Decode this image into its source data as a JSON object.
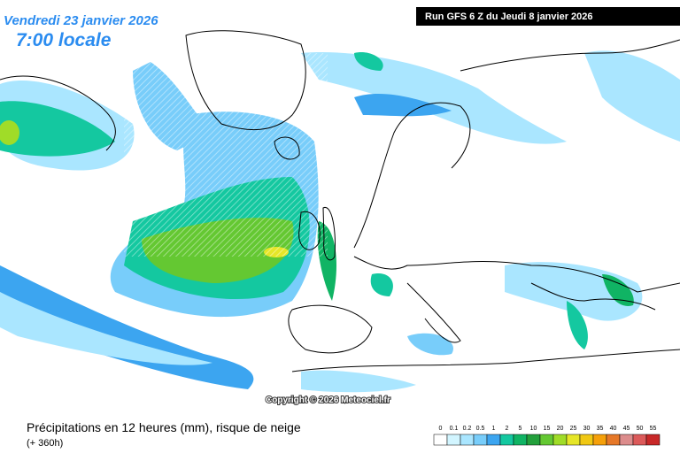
{
  "header": {
    "date": "Vendredi 23 janvier 2026",
    "time": "7:00 locale",
    "run": "Run GFS 6 Z du Jeudi 8 janvier 2026"
  },
  "copyright": "Copyright © 2026 Meteociel.fr",
  "footer": {
    "caption": "Précipitations en 12 heures (mm), risque de neige",
    "lead": "(+ 360h)"
  },
  "legend": [
    {
      "label": "0",
      "color": "#ffffff"
    },
    {
      "label": "0.1",
      "color": "#d2f5ff"
    },
    {
      "label": "0.2",
      "color": "#aae6ff"
    },
    {
      "label": "0.5",
      "color": "#78cdfa"
    },
    {
      "label": "1",
      "color": "#3ca5f0"
    },
    {
      "label": "2",
      "color": "#14c8a0"
    },
    {
      "label": "5",
      "color": "#10b464"
    },
    {
      "label": "10",
      "color": "#23a03c"
    },
    {
      "label": "15",
      "color": "#64c832"
    },
    {
      "label": "20",
      "color": "#a0dc28"
    },
    {
      "label": "25",
      "color": "#e6e628"
    },
    {
      "label": "30",
      "color": "#f0c814"
    },
    {
      "label": "35",
      "color": "#f5a00a"
    },
    {
      "label": "40",
      "color": "#e67828"
    },
    {
      "label": "45",
      "color": "#dc8c8c"
    },
    {
      "label": "50",
      "color": "#dc5a5a"
    },
    {
      "label": "55",
      "color": "#c82828"
    }
  ]
}
